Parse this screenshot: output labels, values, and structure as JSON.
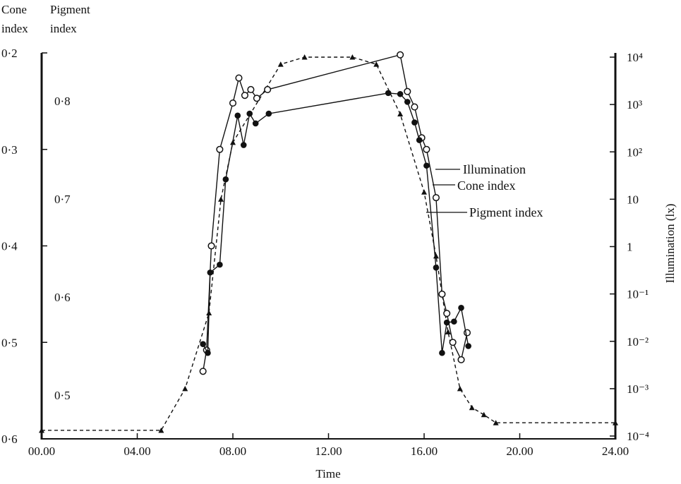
{
  "chart_data": {
    "type": "line",
    "xlabel": "Time",
    "x_ticks": [
      "00.00",
      "04.00",
      "08.00",
      "12.00",
      "16.00",
      "20.00",
      "24.00"
    ],
    "xlim": [
      0,
      24
    ],
    "cone_axis": {
      "title_line1": "Cone",
      "title_line2": "index",
      "ticks": [
        "0·2",
        "0·3",
        "0·4",
        "0·5",
        "0·6"
      ],
      "ylim": [
        0.6,
        0.2
      ]
    },
    "pigment_axis": {
      "title_line1": "Pigment",
      "title_line2": "index",
      "ticks": [
        "0·8",
        "0·7",
        "0·6",
        "0·5"
      ],
      "ylim": [
        0.45,
        0.85
      ]
    },
    "illumination_axis": {
      "label": "Illumination (lx)",
      "scale": "log",
      "ticks": [
        "10⁴",
        "10³",
        "10²",
        "10",
        "1",
        "10⁻¹",
        "10⁻²",
        "10⁻³",
        "10⁻⁴"
      ],
      "ylim_log10": [
        -4,
        4
      ]
    },
    "legend": {
      "illumination": "Illumination",
      "cone": "Cone index",
      "pigment": "Pigment index"
    },
    "series": [
      {
        "name": "Illumination",
        "style": "dashed-triangle",
        "axis": "illumination",
        "x": [
          0,
          5.0,
          6.0,
          7.0,
          7.5,
          8.0,
          10.0,
          11.0,
          13.0,
          14.0,
          15.0,
          16.0,
          16.5,
          17.0,
          17.5,
          18.0,
          18.5,
          19.0,
          24.0
        ],
        "log10_y": [
          -3.88,
          -3.88,
          -3.0,
          -1.4,
          1.0,
          2.2,
          3.85,
          4.0,
          4.0,
          3.85,
          2.8,
          1.15,
          -0.2,
          -1.8,
          -3.0,
          -3.4,
          -3.55,
          -3.72,
          -3.72
        ]
      },
      {
        "name": "Cone index",
        "style": "open-circle",
        "axis": "cone",
        "x": [
          6.75,
          6.9,
          7.1,
          7.45,
          8.0,
          8.25,
          8.5,
          8.75,
          9.0,
          9.45,
          15.0,
          15.3,
          15.6,
          15.9,
          16.1,
          16.5,
          16.75,
          16.95,
          17.2,
          17.55,
          17.8
        ],
        "y": [
          0.53,
          0.508,
          0.4,
          0.3,
          0.252,
          0.226,
          0.244,
          0.238,
          0.247,
          0.238,
          0.202,
          0.24,
          0.256,
          0.288,
          0.3,
          0.35,
          0.45,
          0.47,
          0.5,
          0.518,
          0.49
        ]
      },
      {
        "name": "Pigment index",
        "style": "filled-circle",
        "axis": "pigment",
        "x": [
          6.75,
          6.95,
          7.05,
          7.45,
          7.7,
          8.2,
          8.45,
          8.7,
          8.95,
          9.5,
          14.5,
          15.0,
          15.3,
          15.6,
          15.8,
          16.1,
          16.5,
          16.75,
          16.95,
          17.25,
          17.55,
          17.85
        ],
        "y": [
          0.552,
          0.543,
          0.625,
          0.633,
          0.72,
          0.785,
          0.755,
          0.787,
          0.777,
          0.787,
          0.808,
          0.807,
          0.799,
          0.778,
          0.76,
          0.734,
          0.63,
          0.543,
          0.574,
          0.575,
          0.589,
          0.55
        ]
      }
    ]
  }
}
